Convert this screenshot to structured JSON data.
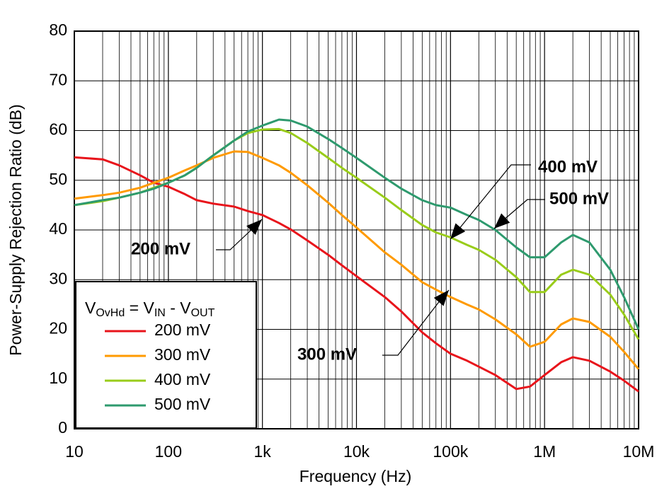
{
  "chart_data": {
    "type": "line",
    "x_label": "Frequency (Hz)",
    "y_label": "Power-Supply Rejection Ratio (dB)",
    "log_x": true,
    "grid": true,
    "xlim": [
      10,
      10000000
    ],
    "xticks": [
      10,
      100,
      {
        "value": 1000,
        "label": "1k"
      },
      {
        "value": 10000,
        "label": "10k"
      },
      {
        "value": 100000,
        "label": "100k"
      },
      {
        "value": 1000000,
        "label": "1M"
      },
      {
        "value": 10000000,
        "label": "10M"
      }
    ],
    "ylim": [
      0,
      80
    ],
    "yticks": [
      0,
      10,
      20,
      30,
      40,
      50,
      60,
      70,
      80
    ],
    "legend_title": [
      "V",
      "OvHd",
      " = V",
      "IN",
      " - V",
      "OUT"
    ],
    "legend_position": "lower left",
    "x": [
      10,
      20,
      30,
      50,
      70,
      100,
      150,
      200,
      300,
      500,
      700,
      1000,
      1500,
      2000,
      3000,
      5000,
      7000,
      10000,
      20000,
      30000,
      50000,
      70000,
      100000,
      150000,
      200000,
      300000,
      500000,
      700000,
      1000000,
      1500000,
      2000000,
      3000000,
      5000000,
      7000000,
      10000000
    ],
    "series": [
      {
        "name": "200 mV",
        "color": "#e8141b",
        "values": [
          54.6,
          54.2,
          53,
          51,
          49.5,
          48.7,
          47.2,
          46,
          45.3,
          44.7,
          43.8,
          43,
          41.4,
          40.1,
          37.9,
          35,
          32.9,
          30.7,
          26.5,
          23.6,
          19.4,
          17.2,
          15.1,
          13.7,
          12.5,
          10.8,
          8,
          8.5,
          10.8,
          13.4,
          14.4,
          13.7,
          11.5,
          9.7,
          7.5
        ]
      },
      {
        "name": "300 mV",
        "color": "#ff9a00",
        "values": [
          46.3,
          47,
          47.5,
          48.5,
          49.5,
          50.5,
          52,
          53,
          54.5,
          55.8,
          55.7,
          54.5,
          53,
          51.5,
          49,
          45.5,
          43,
          40.5,
          35.5,
          33,
          29.5,
          28,
          26.5,
          25,
          24,
          22,
          19,
          16.5,
          17.5,
          21,
          22.2,
          21.5,
          18.5,
          15.5,
          12
        ]
      },
      {
        "name": "400 mV",
        "color": "#99cc1a",
        "values": [
          45,
          45.8,
          46.5,
          47.5,
          48.5,
          49.5,
          51,
          52.5,
          55,
          58,
          59.5,
          60.2,
          60.3,
          59.5,
          57.5,
          54.5,
          52.5,
          50.5,
          46.5,
          44,
          41,
          39.5,
          38.5,
          37,
          36,
          34,
          30.5,
          27.5,
          27.5,
          31,
          32,
          31,
          27,
          23,
          18
        ]
      },
      {
        "name": "500 mV",
        "color": "#2e9a6e",
        "values": [
          45,
          46,
          46.5,
          47.5,
          48.3,
          49.5,
          51,
          52.5,
          55,
          58,
          59.8,
          61,
          62.2,
          62,
          60.8,
          58.3,
          56.5,
          54.5,
          50.5,
          48.3,
          46,
          45,
          44.5,
          43,
          42,
          40,
          36.5,
          34.5,
          34.5,
          37.5,
          39,
          37.5,
          32,
          26.5,
          20
        ]
      }
    ],
    "annotations": [
      "200 mV",
      "300 mV",
      "400 mV",
      "500 mV"
    ]
  }
}
